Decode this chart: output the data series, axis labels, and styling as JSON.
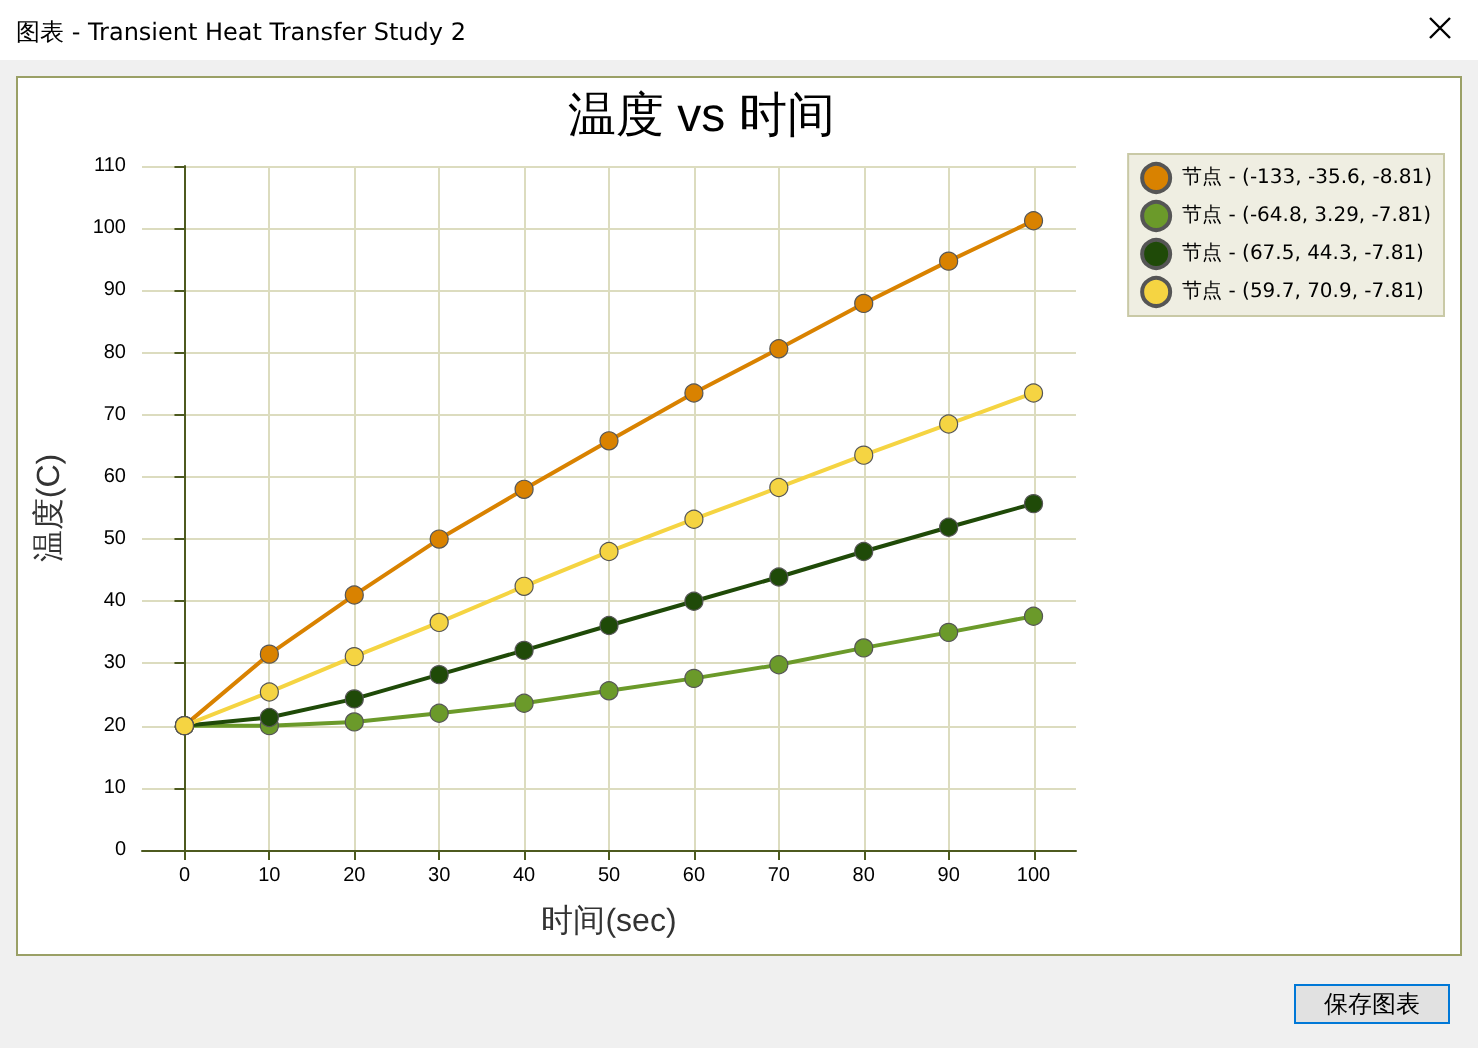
{
  "chart_data": {
    "type": "line",
    "title": "温度 vs 时间",
    "xlabel": "时间(sec)",
    "ylabel": "温度(C)",
    "annotations": [
      "图表 - Transient Heat Transfer Study 2",
      "保存图表"
    ],
    "x": [
      0,
      10,
      20,
      30,
      40,
      50,
      60,
      70,
      80,
      90,
      100
    ],
    "xlim": [
      -5,
      105
    ],
    "xticks": [
      0,
      10,
      20,
      30,
      40,
      50,
      60,
      70,
      80,
      90,
      100
    ],
    "ylim": [
      0,
      110
    ],
    "yticks": [
      0,
      10,
      20,
      30,
      40,
      50,
      60,
      70,
      80,
      90,
      100,
      110
    ],
    "grid": true,
    "legend": "top right",
    "marker": "circle",
    "line_style": "solid",
    "series": [
      {
        "name": "节点 - (-133, -35.6, -8.81)",
        "color": "#d98200",
        "values": [
          20,
          31.5,
          41,
          50,
          58,
          65.8,
          73.5,
          80.6,
          87.9,
          94.7,
          101.2
        ]
      },
      {
        "name": "节点 - (-64.8, 3.29, -7.81)",
        "color": "#6b9a2a",
        "values": [
          20,
          20,
          20.6,
          22,
          23.6,
          25.6,
          27.6,
          29.8,
          32.5,
          35,
          37.6
        ]
      },
      {
        "name": "节点 - (67.5, 44.3, -7.81)",
        "color": "#1f4a08",
        "values": [
          20,
          21.3,
          24.3,
          28.2,
          32.1,
          36.1,
          40,
          43.9,
          48,
          51.9,
          55.7
        ]
      },
      {
        "name": "节点 - (59.7, 70.9, -7.81)",
        "color": "#f5d442",
        "values": [
          20,
          25.4,
          31.1,
          36.6,
          42.4,
          48,
          53.2,
          58.3,
          63.5,
          68.5,
          73.5
        ]
      }
    ]
  }
}
